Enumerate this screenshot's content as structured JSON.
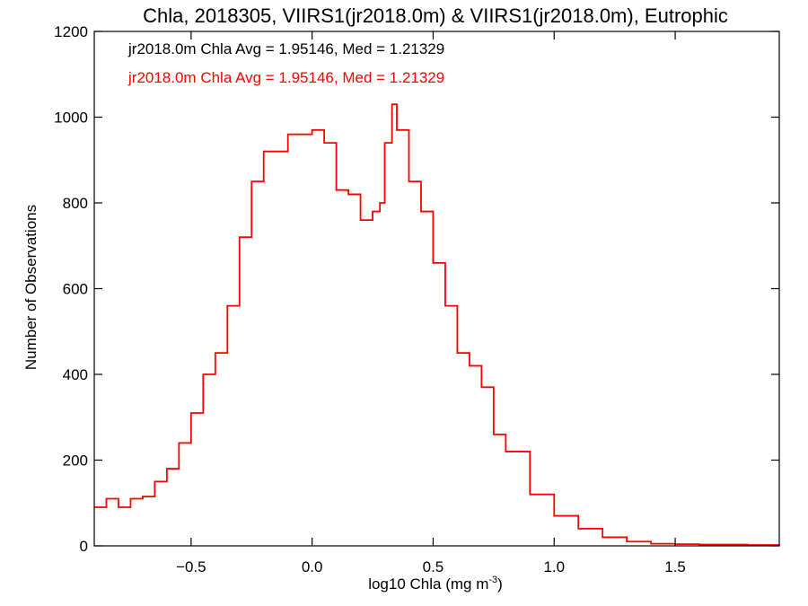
{
  "chart_data": {
    "type": "histogram",
    "title": "Chla, 2018305, VIIRS1(jr2018.0m) & VIIRS1(jr2018.0m), Eutrophic",
    "xlabel_main": "log10 Chla (mg m",
    "xlabel_sup": "-3",
    "xlabel_close": ")",
    "ylabel": "Number of Observations",
    "xlim": [
      -0.9,
      1.93
    ],
    "ylim": [
      0,
      1200
    ],
    "xticks": [
      -0.5,
      0.0,
      0.5,
      1.0,
      1.5
    ],
    "xtick_labels": [
      "−0.5",
      "0.0",
      "0.5",
      "1.0",
      "1.5"
    ],
    "yticks": [
      0,
      200,
      400,
      600,
      800,
      1000,
      1200
    ],
    "ytick_labels": [
      "0",
      "200",
      "400",
      "600",
      "800",
      "1000",
      "1200"
    ],
    "annotations": [
      {
        "text": "jr2018.0m Chla Avg = 1.95146, Med = 1.21329",
        "color": "#000000"
      },
      {
        "text": "jr2018.0m Chla Avg = 1.95146, Med = 1.21329",
        "color": "#ff0000"
      }
    ],
    "series": [
      {
        "color": "#ff0000",
        "x": [
          -0.9,
          -0.85,
          -0.8,
          -0.75,
          -0.7,
          -0.65,
          -0.6,
          -0.55,
          -0.5,
          -0.45,
          -0.4,
          -0.35,
          -0.3,
          -0.25,
          -0.2,
          -0.15,
          -0.1,
          -0.05,
          0.0,
          0.05,
          0.1,
          0.15,
          0.2,
          0.25,
          0.28,
          0.3,
          0.33,
          0.35,
          0.4,
          0.45,
          0.5,
          0.55,
          0.6,
          0.65,
          0.7,
          0.75,
          0.8,
          0.9,
          1.0,
          1.1,
          1.2,
          1.3,
          1.4,
          1.5,
          1.6,
          1.7,
          1.8,
          1.93
        ],
        "y": [
          90,
          110,
          90,
          110,
          115,
          150,
          180,
          240,
          310,
          400,
          450,
          560,
          720,
          850,
          920,
          920,
          960,
          960,
          970,
          940,
          830,
          820,
          760,
          780,
          800,
          940,
          1030,
          970,
          850,
          780,
          660,
          560,
          450,
          420,
          370,
          260,
          220,
          120,
          70,
          40,
          20,
          10,
          5,
          4,
          3,
          3,
          2,
          1
        ]
      }
    ]
  }
}
